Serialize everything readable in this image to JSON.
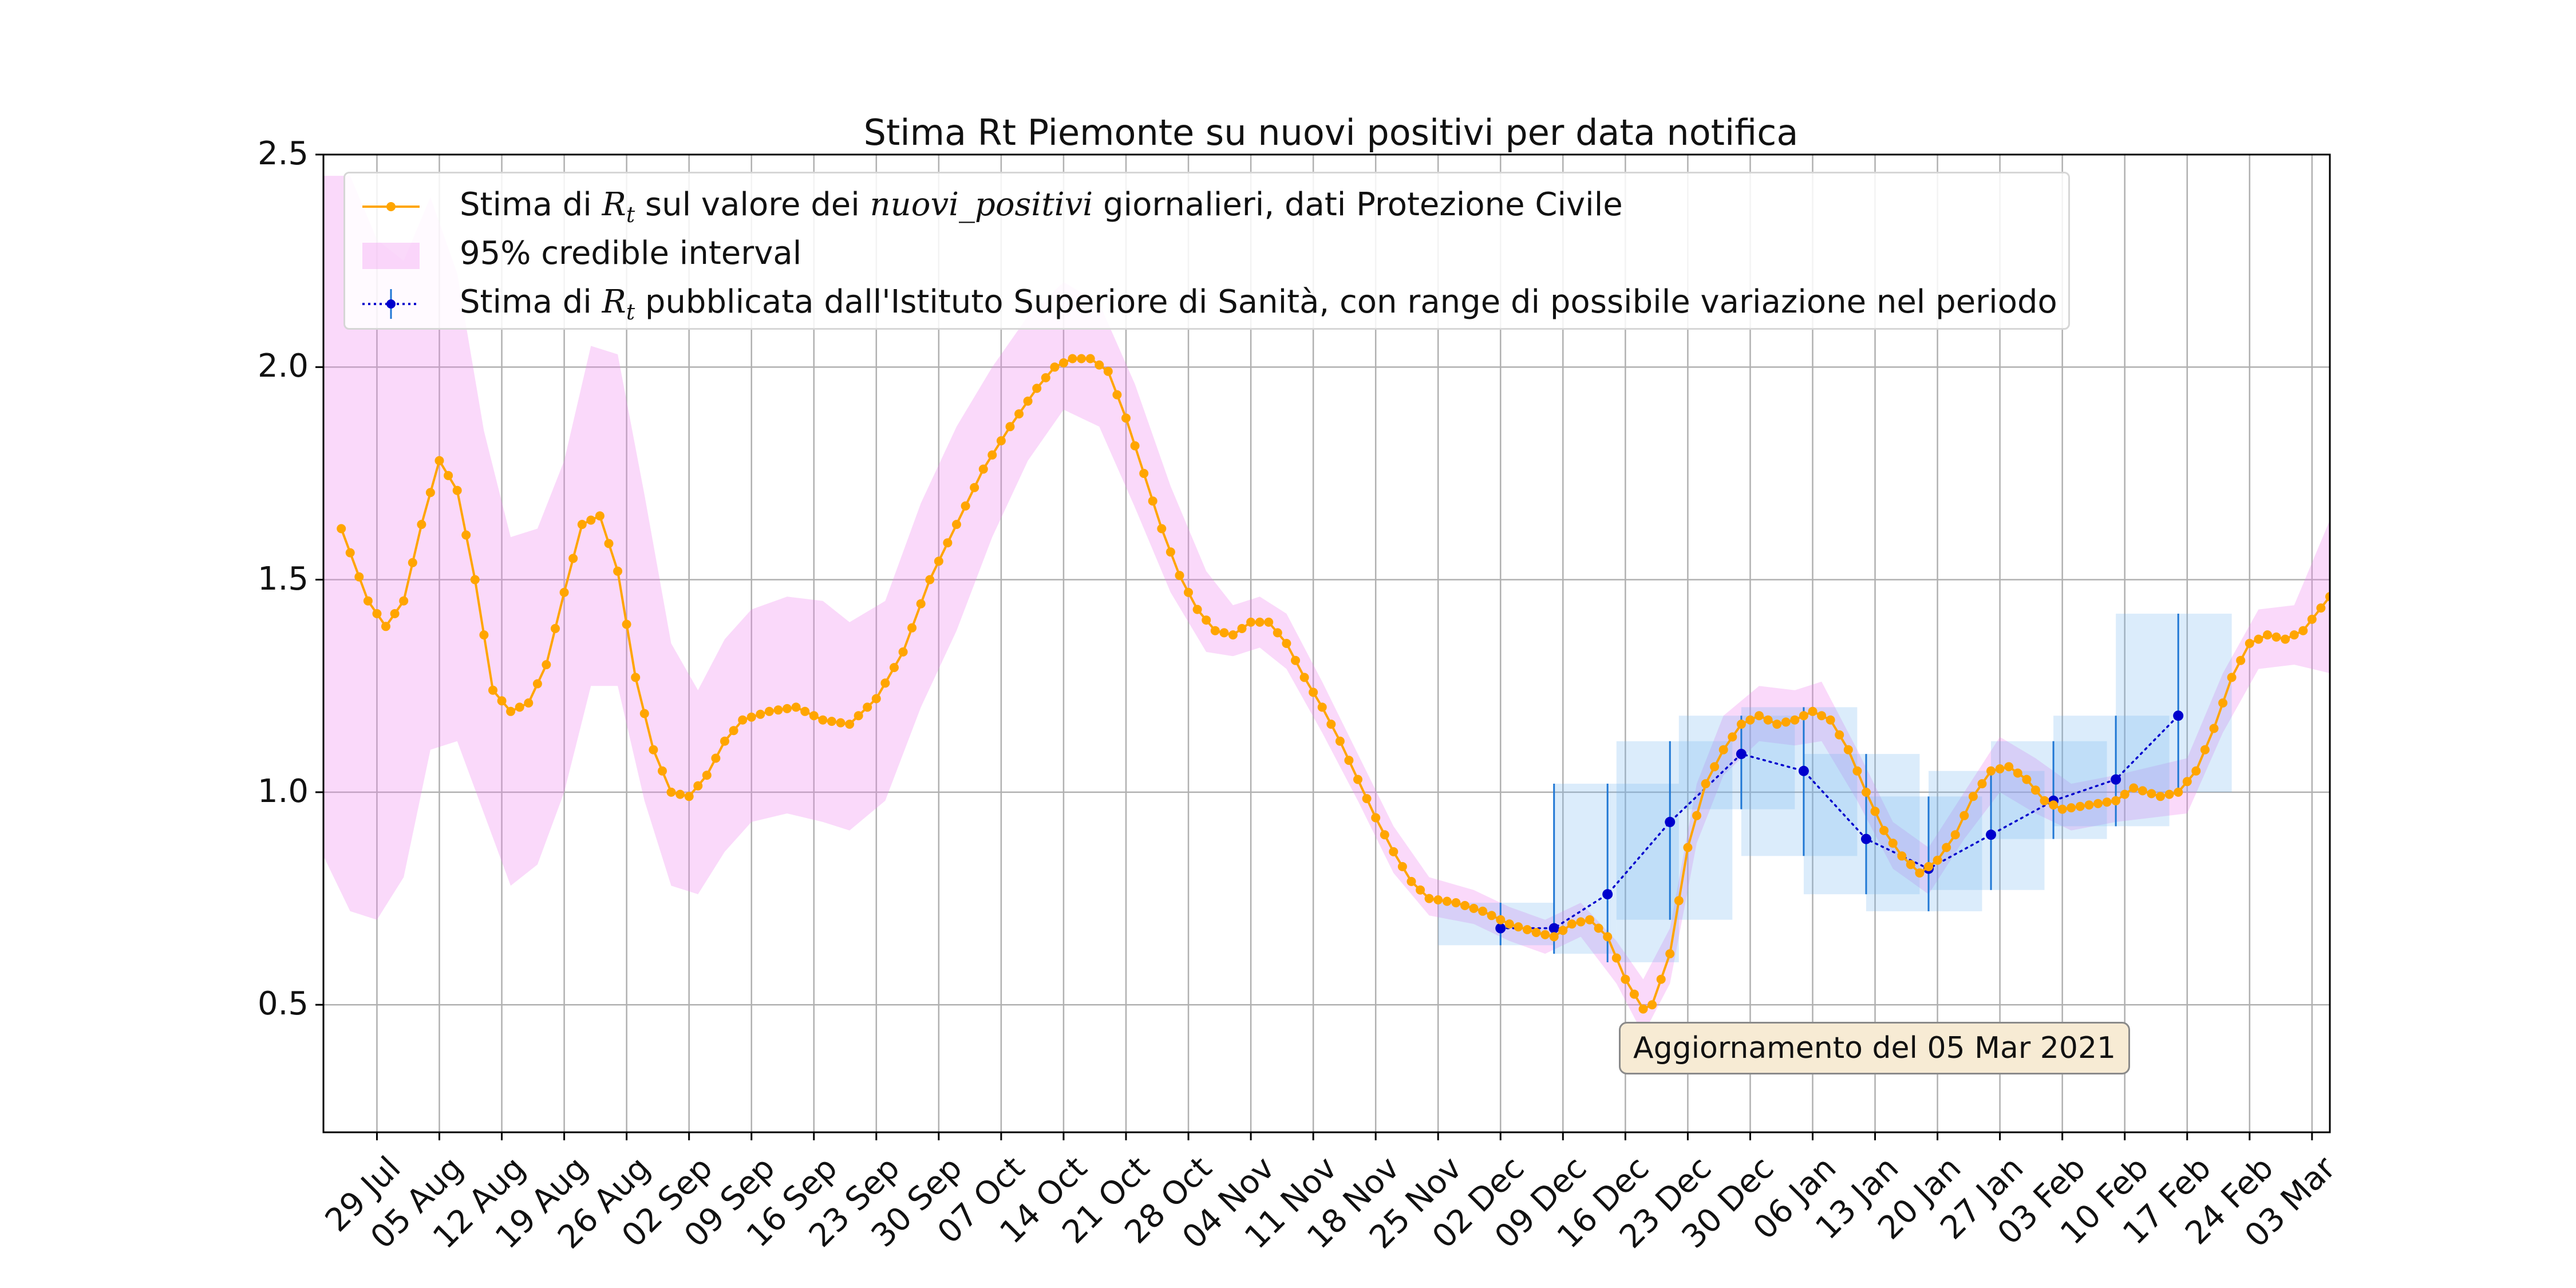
{
  "chart_data": {
    "type": "line",
    "title": "Stima Rt Piemonte su nuovi positivi per data notifica",
    "xlabel": "",
    "ylabel": "",
    "ylim": [
      0.2,
      2.5
    ],
    "xlim": [
      "2020-07-23",
      "2021-03-05"
    ],
    "grid": true,
    "legend_position": "top-left",
    "yticks": [
      "0.5",
      "1.0",
      "1.5",
      "2.0",
      "2.5"
    ],
    "xticks": [
      {
        "date": "2020-07-29",
        "label": "29 Jul"
      },
      {
        "date": "2020-08-05",
        "label": "05 Aug"
      },
      {
        "date": "2020-08-12",
        "label": "12 Aug"
      },
      {
        "date": "2020-08-19",
        "label": "19 Aug"
      },
      {
        "date": "2020-08-26",
        "label": "26 Aug"
      },
      {
        "date": "2020-09-02",
        "label": "02 Sep"
      },
      {
        "date": "2020-09-09",
        "label": "09 Sep"
      },
      {
        "date": "2020-09-16",
        "label": "16 Sep"
      },
      {
        "date": "2020-09-23",
        "label": "23 Sep"
      },
      {
        "date": "2020-09-30",
        "label": "30 Sep"
      },
      {
        "date": "2020-10-07",
        "label": "07 Oct"
      },
      {
        "date": "2020-10-14",
        "label": "14 Oct"
      },
      {
        "date": "2020-10-21",
        "label": "21 Oct"
      },
      {
        "date": "2020-10-28",
        "label": "28 Oct"
      },
      {
        "date": "2020-11-04",
        "label": "04 Nov"
      },
      {
        "date": "2020-11-11",
        "label": "11 Nov"
      },
      {
        "date": "2020-11-18",
        "label": "18 Nov"
      },
      {
        "date": "2020-11-25",
        "label": "25 Nov"
      },
      {
        "date": "2020-12-02",
        "label": "02 Dec"
      },
      {
        "date": "2020-12-09",
        "label": "09 Dec"
      },
      {
        "date": "2020-12-16",
        "label": "16 Dec"
      },
      {
        "date": "2020-12-23",
        "label": "23 Dec"
      },
      {
        "date": "2020-12-30",
        "label": "30 Dec"
      },
      {
        "date": "2021-01-06",
        "label": "06 Jan"
      },
      {
        "date": "2021-01-13",
        "label": "13 Jan"
      },
      {
        "date": "2021-01-20",
        "label": "20 Jan"
      },
      {
        "date": "2021-01-27",
        "label": "27 Jan"
      },
      {
        "date": "2021-02-03",
        "label": "03 Feb"
      },
      {
        "date": "2021-02-10",
        "label": "10 Feb"
      },
      {
        "date": "2021-02-17",
        "label": "17 Feb"
      },
      {
        "date": "2021-02-24",
        "label": "24 Feb"
      },
      {
        "date": "2021-03-03",
        "label": "03 Mar"
      }
    ],
    "series": [
      {
        "name": "Stima di Rt sul valore dei nuovi_positivi giornalieri, dati Protezione Civile",
        "color": "#ffa500",
        "points": [
          [
            "2020-07-25",
            1.62
          ],
          [
            "2020-07-28",
            1.45
          ],
          [
            "2020-07-30",
            1.39
          ],
          [
            "2020-08-01",
            1.45
          ],
          [
            "2020-08-03",
            1.63
          ],
          [
            "2020-08-05",
            1.78
          ],
          [
            "2020-08-07",
            1.71
          ],
          [
            "2020-08-09",
            1.5
          ],
          [
            "2020-08-11",
            1.24
          ],
          [
            "2020-08-13",
            1.19
          ],
          [
            "2020-08-15",
            1.21
          ],
          [
            "2020-08-17",
            1.3
          ],
          [
            "2020-08-19",
            1.47
          ],
          [
            "2020-08-21",
            1.63
          ],
          [
            "2020-08-23",
            1.65
          ],
          [
            "2020-08-25",
            1.52
          ],
          [
            "2020-08-27",
            1.27
          ],
          [
            "2020-08-29",
            1.1
          ],
          [
            "2020-08-31",
            1.0
          ],
          [
            "2020-09-02",
            0.99
          ],
          [
            "2020-09-04",
            1.04
          ],
          [
            "2020-09-06",
            1.12
          ],
          [
            "2020-09-08",
            1.17
          ],
          [
            "2020-09-11",
            1.19
          ],
          [
            "2020-09-14",
            1.2
          ],
          [
            "2020-09-17",
            1.17
          ],
          [
            "2020-09-20",
            1.16
          ],
          [
            "2020-09-23",
            1.22
          ],
          [
            "2020-09-26",
            1.33
          ],
          [
            "2020-09-29",
            1.5
          ],
          [
            "2020-10-02",
            1.63
          ],
          [
            "2020-10-05",
            1.76
          ],
          [
            "2020-10-08",
            1.86
          ],
          [
            "2020-10-11",
            1.95
          ],
          [
            "2020-10-13",
            2.0
          ],
          [
            "2020-10-15",
            2.02
          ],
          [
            "2020-10-17",
            2.02
          ],
          [
            "2020-10-19",
            1.99
          ],
          [
            "2020-10-21",
            1.88
          ],
          [
            "2020-10-23",
            1.75
          ],
          [
            "2020-10-25",
            1.62
          ],
          [
            "2020-10-27",
            1.51
          ],
          [
            "2020-10-29",
            1.43
          ],
          [
            "2020-10-31",
            1.38
          ],
          [
            "2020-11-02",
            1.37
          ],
          [
            "2020-11-04",
            1.4
          ],
          [
            "2020-11-06",
            1.4
          ],
          [
            "2020-11-08",
            1.35
          ],
          [
            "2020-11-10",
            1.27
          ],
          [
            "2020-11-12",
            1.2
          ],
          [
            "2020-11-14",
            1.12
          ],
          [
            "2020-11-16",
            1.03
          ],
          [
            "2020-11-18",
            0.94
          ],
          [
            "2020-11-20",
            0.86
          ],
          [
            "2020-11-22",
            0.79
          ],
          [
            "2020-11-24",
            0.75
          ],
          [
            "2020-11-27",
            0.74
          ],
          [
            "2020-11-30",
            0.72
          ],
          [
            "2020-12-03",
            0.69
          ],
          [
            "2020-12-06",
            0.67
          ],
          [
            "2020-12-08",
            0.66
          ],
          [
            "2020-12-10",
            0.69
          ],
          [
            "2020-12-12",
            0.7
          ],
          [
            "2020-12-14",
            0.66
          ],
          [
            "2020-12-16",
            0.56
          ],
          [
            "2020-12-18",
            0.49
          ],
          [
            "2020-12-19",
            0.5
          ],
          [
            "2020-12-21",
            0.62
          ],
          [
            "2020-12-23",
            0.87
          ],
          [
            "2020-12-25",
            1.02
          ],
          [
            "2020-12-27",
            1.1
          ],
          [
            "2020-12-29",
            1.16
          ],
          [
            "2020-12-31",
            1.18
          ],
          [
            "2021-01-02",
            1.16
          ],
          [
            "2021-01-04",
            1.17
          ],
          [
            "2021-01-06",
            1.19
          ],
          [
            "2021-01-08",
            1.17
          ],
          [
            "2021-01-10",
            1.1
          ],
          [
            "2021-01-12",
            1.0
          ],
          [
            "2021-01-14",
            0.91
          ],
          [
            "2021-01-16",
            0.85
          ],
          [
            "2021-01-18",
            0.81
          ],
          [
            "2021-01-20",
            0.84
          ],
          [
            "2021-01-22",
            0.9
          ],
          [
            "2021-01-24",
            0.99
          ],
          [
            "2021-01-26",
            1.05
          ],
          [
            "2021-01-28",
            1.06
          ],
          [
            "2021-01-30",
            1.03
          ],
          [
            "2021-02-01",
            0.98
          ],
          [
            "2021-02-03",
            0.96
          ],
          [
            "2021-02-06",
            0.97
          ],
          [
            "2021-02-09",
            0.98
          ],
          [
            "2021-02-11",
            1.01
          ],
          [
            "2021-02-14",
            0.99
          ],
          [
            "2021-02-16",
            1.0
          ],
          [
            "2021-02-18",
            1.05
          ],
          [
            "2021-02-20",
            1.15
          ],
          [
            "2021-02-22",
            1.27
          ],
          [
            "2021-02-24",
            1.35
          ],
          [
            "2021-02-26",
            1.37
          ],
          [
            "2021-02-28",
            1.36
          ],
          [
            "2021-03-02",
            1.38
          ],
          [
            "2021-03-05",
            1.46
          ]
        ]
      },
      {
        "name": "95% credible interval",
        "color": "#ee82ee",
        "band": [
          [
            "2020-07-23",
            0.85,
            2.45
          ],
          [
            "2020-07-26",
            0.72,
            2.45
          ],
          [
            "2020-07-29",
            0.7,
            2.3
          ],
          [
            "2020-08-01",
            0.8,
            2.25
          ],
          [
            "2020-08-04",
            1.1,
            2.4
          ],
          [
            "2020-08-07",
            1.12,
            2.22
          ],
          [
            "2020-08-10",
            0.95,
            1.85
          ],
          [
            "2020-08-13",
            0.78,
            1.6
          ],
          [
            "2020-08-16",
            0.83,
            1.62
          ],
          [
            "2020-08-19",
            1.0,
            1.78
          ],
          [
            "2020-08-22",
            1.25,
            2.05
          ],
          [
            "2020-08-25",
            1.25,
            2.03
          ],
          [
            "2020-08-28",
            0.98,
            1.7
          ],
          [
            "2020-08-31",
            0.78,
            1.35
          ],
          [
            "2020-09-03",
            0.76,
            1.24
          ],
          [
            "2020-09-06",
            0.86,
            1.36
          ],
          [
            "2020-09-09",
            0.93,
            1.43
          ],
          [
            "2020-09-13",
            0.95,
            1.46
          ],
          [
            "2020-09-17",
            0.93,
            1.45
          ],
          [
            "2020-09-20",
            0.91,
            1.4
          ],
          [
            "2020-09-24",
            0.98,
            1.45
          ],
          [
            "2020-09-28",
            1.2,
            1.68
          ],
          [
            "2020-10-02",
            1.38,
            1.86
          ],
          [
            "2020-10-06",
            1.6,
            2.0
          ],
          [
            "2020-10-10",
            1.78,
            2.12
          ],
          [
            "2020-10-14",
            1.9,
            2.2
          ],
          [
            "2020-10-18",
            1.86,
            2.15
          ],
          [
            "2020-10-22",
            1.67,
            1.96
          ],
          [
            "2020-10-26",
            1.47,
            1.72
          ],
          [
            "2020-10-30",
            1.33,
            1.52
          ],
          [
            "2020-11-02",
            1.32,
            1.44
          ],
          [
            "2020-11-05",
            1.34,
            1.46
          ],
          [
            "2020-11-08",
            1.29,
            1.42
          ],
          [
            "2020-11-12",
            1.14,
            1.26
          ],
          [
            "2020-11-16",
            0.98,
            1.09
          ],
          [
            "2020-11-20",
            0.81,
            0.92
          ],
          [
            "2020-11-24",
            0.71,
            0.8
          ],
          [
            "2020-11-29",
            0.69,
            0.77
          ],
          [
            "2020-12-03",
            0.65,
            0.73
          ],
          [
            "2020-12-07",
            0.62,
            0.7
          ],
          [
            "2020-12-11",
            0.66,
            0.74
          ],
          [
            "2020-12-15",
            0.55,
            0.65
          ],
          [
            "2020-12-18",
            0.43,
            0.56
          ],
          [
            "2020-12-21",
            0.55,
            0.68
          ],
          [
            "2020-12-24",
            0.88,
            1.02
          ],
          [
            "2020-12-27",
            1.04,
            1.18
          ],
          [
            "2020-12-31",
            1.12,
            1.25
          ],
          [
            "2021-01-04",
            1.11,
            1.24
          ],
          [
            "2021-01-07",
            1.12,
            1.26
          ],
          [
            "2021-01-11",
            0.98,
            1.1
          ],
          [
            "2021-01-15",
            0.82,
            0.93
          ],
          [
            "2021-01-19",
            0.76,
            0.87
          ],
          [
            "2021-01-23",
            0.89,
            1.0
          ],
          [
            "2021-01-27",
            1.0,
            1.13
          ],
          [
            "2021-01-31",
            0.95,
            1.08
          ],
          [
            "2021-02-04",
            0.91,
            1.02
          ],
          [
            "2021-02-09",
            0.93,
            1.04
          ],
          [
            "2021-02-13",
            0.94,
            1.06
          ],
          [
            "2021-02-17",
            0.95,
            1.08
          ],
          [
            "2021-02-21",
            1.14,
            1.28
          ],
          [
            "2021-02-25",
            1.29,
            1.43
          ],
          [
            "2021-03-01",
            1.3,
            1.44
          ],
          [
            "2021-03-05",
            1.28,
            1.64
          ]
        ]
      },
      {
        "name": "Stima di Rt pubblicata dall'Istituto Superiore di Sanità, con range di possibile variazione nel periodo",
        "color": "#0000cd",
        "points": [
          {
            "date": "2020-12-02",
            "value": 0.68,
            "low": 0.64,
            "high": 0.74,
            "from": "2020-11-25",
            "to": "2020-12-08"
          },
          {
            "date": "2020-12-08",
            "value": 0.68,
            "low": 0.62,
            "high": 1.02,
            "from": "2020-12-08",
            "to": "2020-12-15"
          },
          {
            "date": "2020-12-14",
            "value": 0.76,
            "low": 0.6,
            "high": 1.02,
            "from": "2020-12-15",
            "to": "2020-12-22"
          },
          {
            "date": "2020-12-21",
            "value": 0.93,
            "low": 0.7,
            "high": 1.12,
            "from": "2020-12-15",
            "to": "2020-12-28"
          },
          {
            "date": "2020-12-29",
            "value": 1.09,
            "low": 0.96,
            "high": 1.18,
            "from": "2020-12-22",
            "to": "2021-01-04"
          },
          {
            "date": "2021-01-05",
            "value": 1.05,
            "low": 0.85,
            "high": 1.2,
            "from": "2020-12-29",
            "to": "2021-01-11"
          },
          {
            "date": "2021-01-12",
            "value": 0.89,
            "low": 0.76,
            "high": 1.09,
            "from": "2021-01-05",
            "to": "2021-01-18"
          },
          {
            "date": "2021-01-19",
            "value": 0.82,
            "low": 0.72,
            "high": 0.99,
            "from": "2021-01-12",
            "to": "2021-01-25"
          },
          {
            "date": "2021-01-26",
            "value": 0.9,
            "low": 0.77,
            "high": 1.05,
            "from": "2021-01-19",
            "to": "2021-02-01"
          },
          {
            "date": "2021-02-02",
            "value": 0.98,
            "low": 0.89,
            "high": 1.12,
            "from": "2021-01-26",
            "to": "2021-02-08"
          },
          {
            "date": "2021-02-09",
            "value": 1.03,
            "low": 0.92,
            "high": 1.18,
            "from": "2021-02-02",
            "to": "2021-02-15"
          },
          {
            "date": "2021-02-16",
            "value": 1.18,
            "low": 1.0,
            "high": 1.42,
            "from": "2021-02-09",
            "to": "2021-02-22"
          }
        ]
      }
    ],
    "annotation": "Aggiornamento del 05 Mar 2021"
  }
}
